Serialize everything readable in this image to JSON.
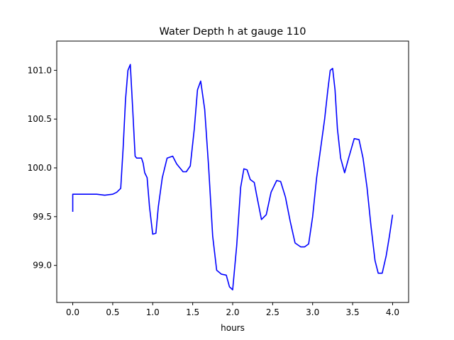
{
  "chart_data": {
    "type": "line",
    "title": "Water Depth h at gauge 110",
    "xlabel": "hours",
    "ylabel": "",
    "xlim": [
      -0.2,
      4.2
    ],
    "ylim": [
      98.62,
      101.3
    ],
    "xticks": [
      0.0,
      0.5,
      1.0,
      1.5,
      2.0,
      2.5,
      3.0,
      3.5,
      4.0
    ],
    "xtick_labels": [
      "0.0",
      "0.5",
      "1.0",
      "1.5",
      "2.0",
      "2.5",
      "3.0",
      "3.5",
      "4.0"
    ],
    "yticks": [
      99.0,
      99.5,
      100.0,
      100.5,
      101.0
    ],
    "ytick_labels": [
      "99.0",
      "99.5",
      "100.0",
      "100.5",
      "101.0"
    ],
    "grid": false,
    "line_color": "#0000ff",
    "series": [
      {
        "x": [
          0.0,
          0.0,
          0.1,
          0.2,
          0.3,
          0.4,
          0.5,
          0.55,
          0.6,
          0.63,
          0.66,
          0.69,
          0.72,
          0.75,
          0.78,
          0.8,
          0.83,
          0.86,
          0.88,
          0.9,
          0.93,
          0.96,
          1.0,
          1.04,
          1.07,
          1.12,
          1.18,
          1.25,
          1.3,
          1.38,
          1.42,
          1.47,
          1.52,
          1.56,
          1.6,
          1.65,
          1.7,
          1.75,
          1.8,
          1.86,
          1.92,
          1.96,
          2.0,
          2.05,
          2.1,
          2.14,
          2.18,
          2.22,
          2.27,
          2.3,
          2.36,
          2.42,
          2.48,
          2.55,
          2.6,
          2.66,
          2.72,
          2.78,
          2.85,
          2.9,
          2.95,
          3.0,
          3.05,
          3.1,
          3.15,
          3.19,
          3.22,
          3.25,
          3.28,
          3.31,
          3.35,
          3.4,
          3.45,
          3.52,
          3.58,
          3.63,
          3.68,
          3.73,
          3.78,
          3.82,
          3.87,
          3.92,
          3.96,
          4.0
        ],
        "y": [
          99.55,
          99.73,
          99.73,
          99.73,
          99.73,
          99.72,
          99.73,
          99.75,
          99.79,
          100.2,
          100.7,
          101.0,
          101.06,
          100.6,
          100.12,
          100.1,
          100.1,
          100.1,
          100.05,
          99.95,
          99.9,
          99.6,
          99.32,
          99.33,
          99.6,
          99.9,
          100.1,
          100.12,
          100.04,
          99.96,
          99.96,
          100.02,
          100.4,
          100.8,
          100.89,
          100.6,
          100.0,
          99.3,
          98.95,
          98.91,
          98.9,
          98.78,
          98.75,
          99.2,
          99.8,
          99.99,
          99.98,
          99.88,
          99.85,
          99.72,
          99.47,
          99.52,
          99.75,
          99.87,
          99.86,
          99.7,
          99.45,
          99.23,
          99.19,
          99.19,
          99.22,
          99.5,
          99.9,
          100.2,
          100.5,
          100.8,
          101.0,
          101.02,
          100.8,
          100.4,
          100.1,
          99.95,
          100.1,
          100.3,
          100.29,
          100.1,
          99.8,
          99.4,
          99.05,
          98.92,
          98.92,
          99.1,
          99.3,
          99.52
        ]
      }
    ]
  }
}
